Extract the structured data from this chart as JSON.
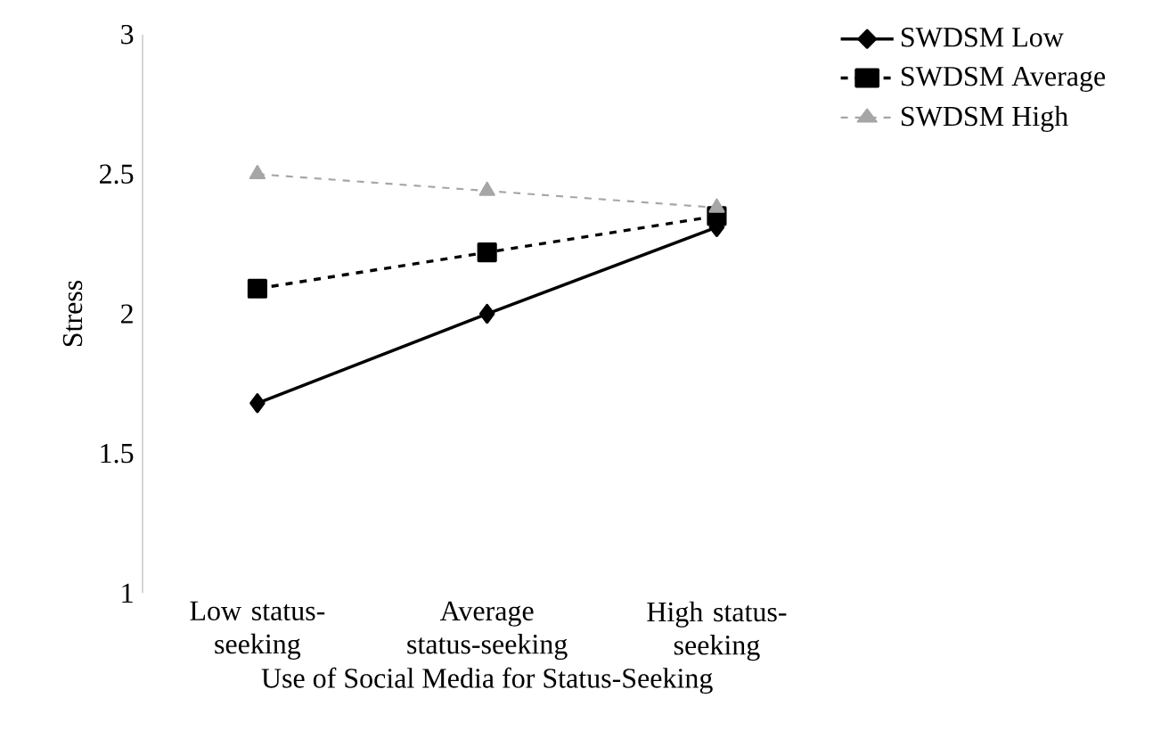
{
  "chart_data": {
    "type": "line",
    "xlabel": "Use of Social Media for Status-Seeking",
    "ylabel": "Stress",
    "categories": [
      "Low status-seeking",
      "Average status-seeking",
      "High status-seeking"
    ],
    "ylim": [
      1,
      3
    ],
    "yticks": [
      1,
      1.5,
      2,
      2.5,
      3
    ],
    "grid": false,
    "legend": "top right",
    "series": [
      {
        "name": "SWDSM Low",
        "color": "#000000",
        "marker": "diamond",
        "line_style": "solid",
        "values": [
          1.68,
          2.0,
          2.31
        ]
      },
      {
        "name": "SWDSM Average",
        "color": "#000000",
        "marker": "square",
        "line_style": "dashed",
        "values": [
          2.09,
          2.22,
          2.35
        ]
      },
      {
        "name": "SWDSM High",
        "color": "#a6a6a6",
        "marker": "triangle",
        "line_style": "dashed",
        "values": [
          2.5,
          2.44,
          2.38
        ]
      }
    ]
  }
}
